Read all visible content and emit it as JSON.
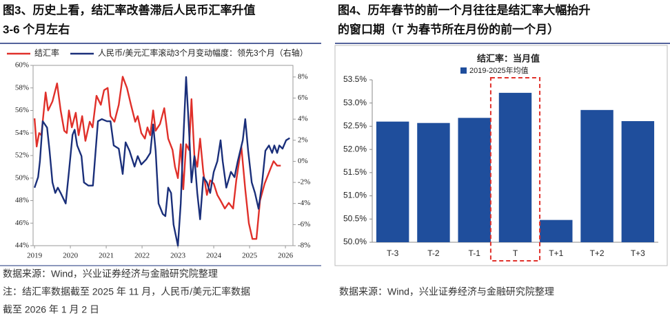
{
  "left": {
    "title": [
      "图3、历史上看，结汇率改善滞后人民币汇率升值",
      "3-6 个月左右"
    ],
    "source": "数据来源：Wind，兴业证券经济与金融研究院整理",
    "note": [
      "注：结汇率数据截至 2025 年 11 月，人民币/美元汇率数据",
      "截至 2026 年 1 月 2 日"
    ]
  },
  "right": {
    "title": [
      "图4、历年春节的前一个月往往是结汇率大幅抬升",
      "的窗口期（T 为春节所在月份的前一个月）"
    ],
    "source": "数据来源：Wind，兴业证券经济与金融研究院整理"
  },
  "chart_data": [
    {
      "type": "line",
      "xlim": [
        2018.96,
        2026.21
      ],
      "xticks": [
        2019,
        2020,
        2021,
        2022,
        2023,
        2024,
        2025,
        2026
      ],
      "ylim": [
        44,
        60
      ],
      "yticks": [
        {
          "value": 44,
          "label": "44%"
        },
        {
          "value": 46,
          "label": "46%"
        },
        {
          "value": 48,
          "label": "48%"
        },
        {
          "value": 50,
          "label": "50%"
        },
        {
          "value": 52,
          "label": "52%"
        },
        {
          "value": 54,
          "label": "54%"
        },
        {
          "value": 56,
          "label": "56%"
        },
        {
          "value": 58,
          "label": "58%"
        },
        {
          "value": 60,
          "label": "60%"
        }
      ],
      "y2lim": [
        -8,
        9.1
      ],
      "y2ticks": [
        {
          "value": -8,
          "label": "-8%"
        },
        {
          "value": -6,
          "label": "-6%"
        },
        {
          "value": -4,
          "label": "-4%"
        },
        {
          "value": -2,
          "label": "-2%"
        },
        {
          "value": 0,
          "label": "0%"
        },
        {
          "value": 2,
          "label": "2%"
        },
        {
          "value": 4,
          "label": "4%"
        },
        {
          "value": 6,
          "label": "6%"
        },
        {
          "value": 8,
          "label": "8%"
        }
      ],
      "legend": "top",
      "series": [
        {
          "name": "结汇率",
          "color": "#e0302a",
          "x": [
            2019.0,
            2019.06,
            2019.13,
            2019.19,
            2019.31,
            2019.38,
            2019.5,
            2019.63,
            2019.73,
            2019.83,
            2019.9,
            2019.96,
            2020.04,
            2020.15,
            2020.23,
            2020.33,
            2020.42,
            2020.54,
            2020.62,
            2020.73,
            2020.85,
            2020.94,
            2021.04,
            2021.12,
            2021.23,
            2021.35,
            2021.46,
            2021.58,
            2021.69,
            2021.81,
            2021.88,
            2021.98,
            2022.08,
            2022.15,
            2022.23,
            2022.31,
            2022.38,
            2022.5,
            2022.62,
            2022.73,
            2022.85,
            2022.92,
            2023.0,
            2023.08,
            2023.15,
            2023.23,
            2023.31,
            2023.38,
            2023.46,
            2023.54,
            2023.62,
            2023.71,
            2023.81,
            2023.9,
            2024.0,
            2024.1,
            2024.19,
            2024.31,
            2024.42,
            2024.54,
            2024.63,
            2024.77,
            2024.88,
            2024.98,
            2025.08,
            2025.19,
            2025.29,
            2025.42,
            2025.58,
            2025.67,
            2025.77,
            2025.87
          ],
          "values": [
            55.3,
            52.8,
            54.0,
            53.8,
            57.6,
            56.0,
            56.8,
            58.4,
            56.0,
            54.2,
            54.0,
            56.0,
            54.5,
            55.8,
            53.8,
            55.5,
            53.3,
            55.0,
            54.5,
            57.3,
            56.5,
            57.8,
            58.0,
            55.5,
            55.0,
            56.5,
            59.0,
            58.0,
            56.5,
            55.0,
            55.5,
            54.0,
            53.5,
            54.5,
            53.8,
            56.0,
            54.2,
            54.8,
            56.2,
            53.5,
            52.5,
            51.0,
            50.0,
            53.0,
            49.0,
            53.0,
            52.5,
            57.0,
            52.0,
            51.0,
            53.5,
            50.5,
            48.5,
            49.8,
            49.5,
            48.5,
            48.0,
            47.3,
            47.8,
            47.3,
            49.8,
            52.8,
            49.0,
            46.0,
            44.6,
            44.6,
            48.0,
            49.5,
            50.8,
            51.5,
            51.1,
            51.1
          ]
        },
        {
          "name": "人民币/美元汇率滚动3个月变动幅度：领先3个月（右轴）",
          "color": "#1a2f7a",
          "axis": "y2",
          "x": [
            2019.0,
            2019.1,
            2019.15,
            2019.23,
            2019.35,
            2019.42,
            2019.5,
            2019.58,
            2019.65,
            2019.73,
            2019.87,
            2019.96,
            2020.06,
            2020.12,
            2020.19,
            2020.31,
            2020.38,
            2020.5,
            2020.63,
            2020.77,
            2020.88,
            2021.02,
            2021.12,
            2021.21,
            2021.35,
            2021.46,
            2021.54,
            2021.65,
            2021.79,
            2021.88,
            2021.98,
            2022.12,
            2022.23,
            2022.31,
            2022.38,
            2022.46,
            2022.58,
            2022.65,
            2022.73,
            2022.81,
            2022.88,
            2023.0,
            2023.08,
            2023.15,
            2023.23,
            2023.31,
            2023.38,
            2023.46,
            2023.54,
            2023.62,
            2023.71,
            2023.81,
            2023.9,
            2024.0,
            2024.1,
            2024.19,
            2024.25,
            2024.35,
            2024.48,
            2024.58,
            2024.67,
            2024.81,
            2024.88,
            2024.96,
            2025.06,
            2025.15,
            2025.25,
            2025.35,
            2025.44,
            2025.54,
            2025.63,
            2025.69,
            2025.77,
            2025.83,
            2025.92,
            2026.02,
            2026.12
          ],
          "values": [
            -2.5,
            -1.5,
            0,
            3.8,
            3.2,
            1,
            -2,
            -3,
            -2.5,
            -3,
            -4,
            -1,
            2.5,
            3,
            1.5,
            0.5,
            -2,
            -2.3,
            -2.3,
            3.8,
            4,
            3.8,
            3.8,
            1.5,
            1.2,
            -1.2,
            1.8,
            1,
            -0.5,
            0.5,
            -0.3,
            0.2,
            0.8,
            3.5,
            1,
            -4,
            -5,
            -5.2,
            -2.5,
            -3,
            -6,
            -8,
            -4,
            2,
            8,
            3,
            -2,
            0.5,
            -3,
            -5.5,
            -1.5,
            -2,
            -3,
            -1,
            0,
            2,
            0,
            -2.5,
            -1,
            -1.5,
            0,
            2,
            4,
            1,
            -2,
            -3,
            -4.5,
            -2,
            1,
            1.5,
            0.8,
            1.5,
            0.8,
            1.5,
            1.2,
            2,
            2.2
          ]
        }
      ]
    },
    {
      "type": "bar",
      "title": "结汇率：当月值",
      "categories": [
        "T-3",
        "T-2",
        "T-1",
        "T",
        "T+1",
        "T+2",
        "T+3"
      ],
      "series": [
        {
          "name": "2019-2025年均值",
          "color": "#1f4e9c",
          "values": [
            52.6,
            52.57,
            52.68,
            53.22,
            50.48,
            52.85,
            52.61
          ]
        }
      ],
      "ylim": [
        50,
        53.5
      ],
      "yticks": [
        {
          "value": 50,
          "label": "50.0%"
        },
        {
          "value": 50.5,
          "label": "50.5%"
        },
        {
          "value": 51,
          "label": "51.0%"
        },
        {
          "value": 51.5,
          "label": "51.5%"
        },
        {
          "value": 52,
          "label": "52.0%"
        },
        {
          "value": 52.5,
          "label": "52.5%"
        },
        {
          "value": 53,
          "label": "53.0%"
        },
        {
          "value": 53.5,
          "label": "53.5%"
        }
      ],
      "grid": false
    }
  ]
}
